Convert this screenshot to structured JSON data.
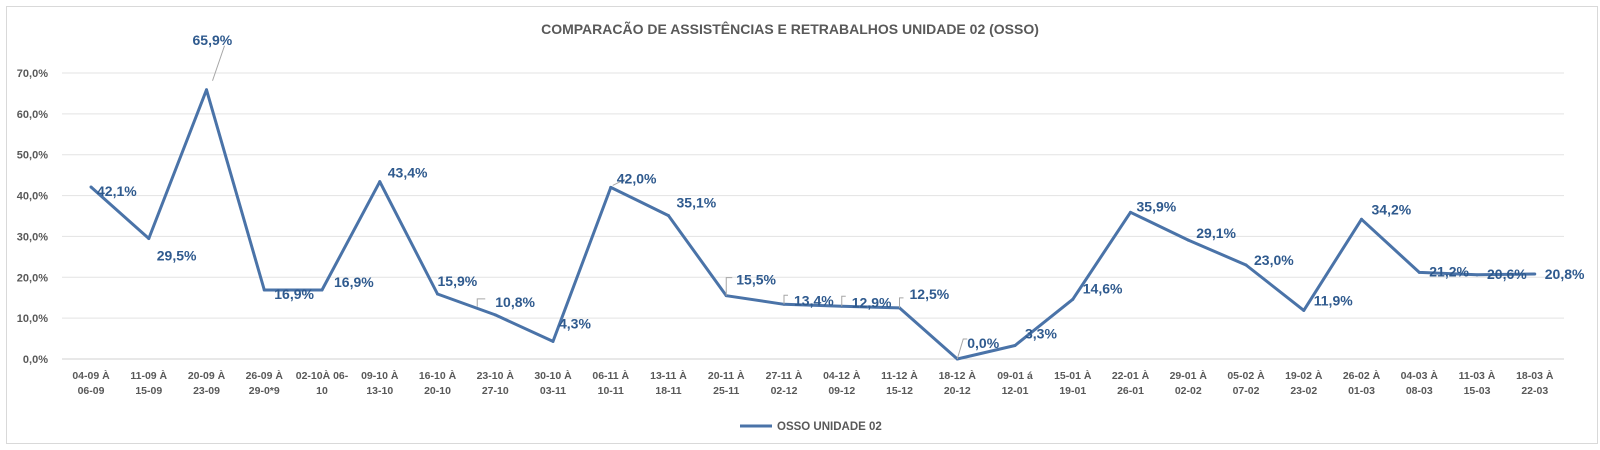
{
  "chart_data": {
    "type": "line",
    "title": "COMPARACÃO DE ASSISTÊNCIAS E RETRABALHOS UNIDADE 02  (OSSO)",
    "xlabel": "",
    "ylabel": "",
    "ylim": [
      0,
      70
    ],
    "ytick_labels": [
      "0,0%",
      "10,0%",
      "20,0%",
      "30,0%",
      "40,0%",
      "50,0%",
      "60,0%",
      "70,0%"
    ],
    "grid": true,
    "legend_position": "bottom",
    "categories": [
      [
        "04-09 À",
        "06-09"
      ],
      [
        "11-09 À",
        "15-09"
      ],
      [
        "20-09 À",
        "23-09"
      ],
      [
        "26-09 À",
        "29-0*9"
      ],
      [
        "02-10À 06-",
        "10"
      ],
      [
        "09-10 À",
        "13-10"
      ],
      [
        "16-10 À",
        "20-10"
      ],
      [
        "23-10 À",
        "27-10"
      ],
      [
        "30-10 À",
        "03-11"
      ],
      [
        "06-11 À",
        "10-11"
      ],
      [
        "13-11 À",
        "18-11"
      ],
      [
        "20-11 À",
        "25-11"
      ],
      [
        "27-11 À",
        "02-12"
      ],
      [
        "04-12 À",
        "09-12"
      ],
      [
        "11-12 À",
        "15-12"
      ],
      [
        "18-12 À",
        "20-12"
      ],
      [
        "09-01 á",
        "12-01"
      ],
      [
        "15-01 À",
        "19-01"
      ],
      [
        "22-01 À",
        "26-01"
      ],
      [
        "29-01 À",
        "02-02"
      ],
      [
        "05-02 À",
        "07-02"
      ],
      [
        "19-02 À",
        "23-02"
      ],
      [
        "26-02 À",
        "01-03"
      ],
      [
        "04-03 À",
        "08-03"
      ],
      [
        "11-03 À",
        "15-03"
      ],
      [
        "18-03 À",
        "22-03"
      ]
    ],
    "series": [
      {
        "name": "OSSO UNIDADE 02",
        "color": "#4a73a8",
        "values": [
          42.1,
          29.5,
          65.9,
          16.9,
          16.9,
          43.4,
          15.9,
          10.8,
          4.3,
          42.0,
          35.1,
          15.5,
          13.4,
          12.9,
          12.5,
          0.0,
          3.3,
          14.6,
          35.9,
          29.1,
          23.0,
          11.9,
          34.2,
          21.2,
          20.6,
          20.8
        ],
        "labels": [
          "42,1%",
          "29,5%",
          "65,9%",
          "16,9%",
          "16,9%",
          "43,4%",
          "15,9%",
          "10,8%",
          "4,3%",
          "42,0%",
          "35,1%",
          "15,5%",
          "13,4%",
          "12,9%",
          "12,5%",
          "0,0%",
          "3,3%",
          "14,6%",
          "35,9%",
          "29,1%",
          "23,0%",
          "11,9%",
          "34,2%",
          "21,2%",
          "20,6%",
          "20,8%"
        ]
      }
    ]
  }
}
